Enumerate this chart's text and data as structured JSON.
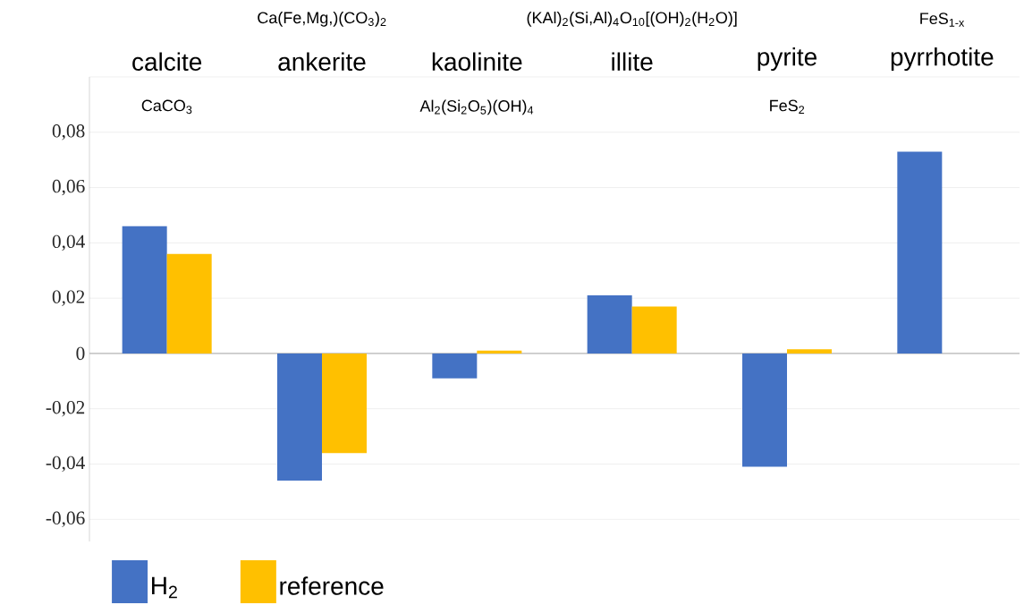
{
  "chart_data": {
    "type": "bar",
    "categories": [
      "calcite",
      "ankerite",
      "kaolinite",
      "illite",
      "pyrite",
      "pyrrhotite"
    ],
    "series": [
      {
        "name": "H$_{2}$",
        "color": "#4472c4",
        "values": [
          0.046,
          -0.046,
          -0.009,
          0.021,
          -0.041,
          0.073
        ]
      },
      {
        "name": "reference",
        "color": "#ffc000",
        "values": [
          0.036,
          -0.036,
          0.001,
          0.017,
          0.0015,
          null
        ]
      }
    ],
    "annotations": [
      "CaCO$_{3}$",
      "Ca(Fe,Mg,)(CO$_{3}$)$_{2}$",
      "Al$_{2}$(Si$_{2}$O$_{5}$)(OH)$_{4}$",
      "(KAl)$_{2}$(Si,Al)$_{4}$O$_{10}$[(OH)$_{2}$(H$_{2}$O)]",
      "FeS$_{2}$",
      "FeS$_{1-x}$"
    ],
    "ylim": [
      -0.068,
      0.1
    ],
    "yticks": [
      {
        "value": -0.06,
        "label": "-0,06"
      },
      {
        "value": -0.04,
        "label": "-0,04"
      },
      {
        "value": -0.02,
        "label": "-0,02"
      },
      0,
      {
        "value": 0.02,
        "label": "0,02"
      },
      {
        "value": 0.04,
        "label": "0,04"
      },
      {
        "value": 0.06,
        "label": "0,06"
      },
      {
        "value": 0.08,
        "label": "0,08"
      },
      {
        "value": 0.1,
        "label": null
      }
    ],
    "grid": "y",
    "legend": "bottom left"
  }
}
